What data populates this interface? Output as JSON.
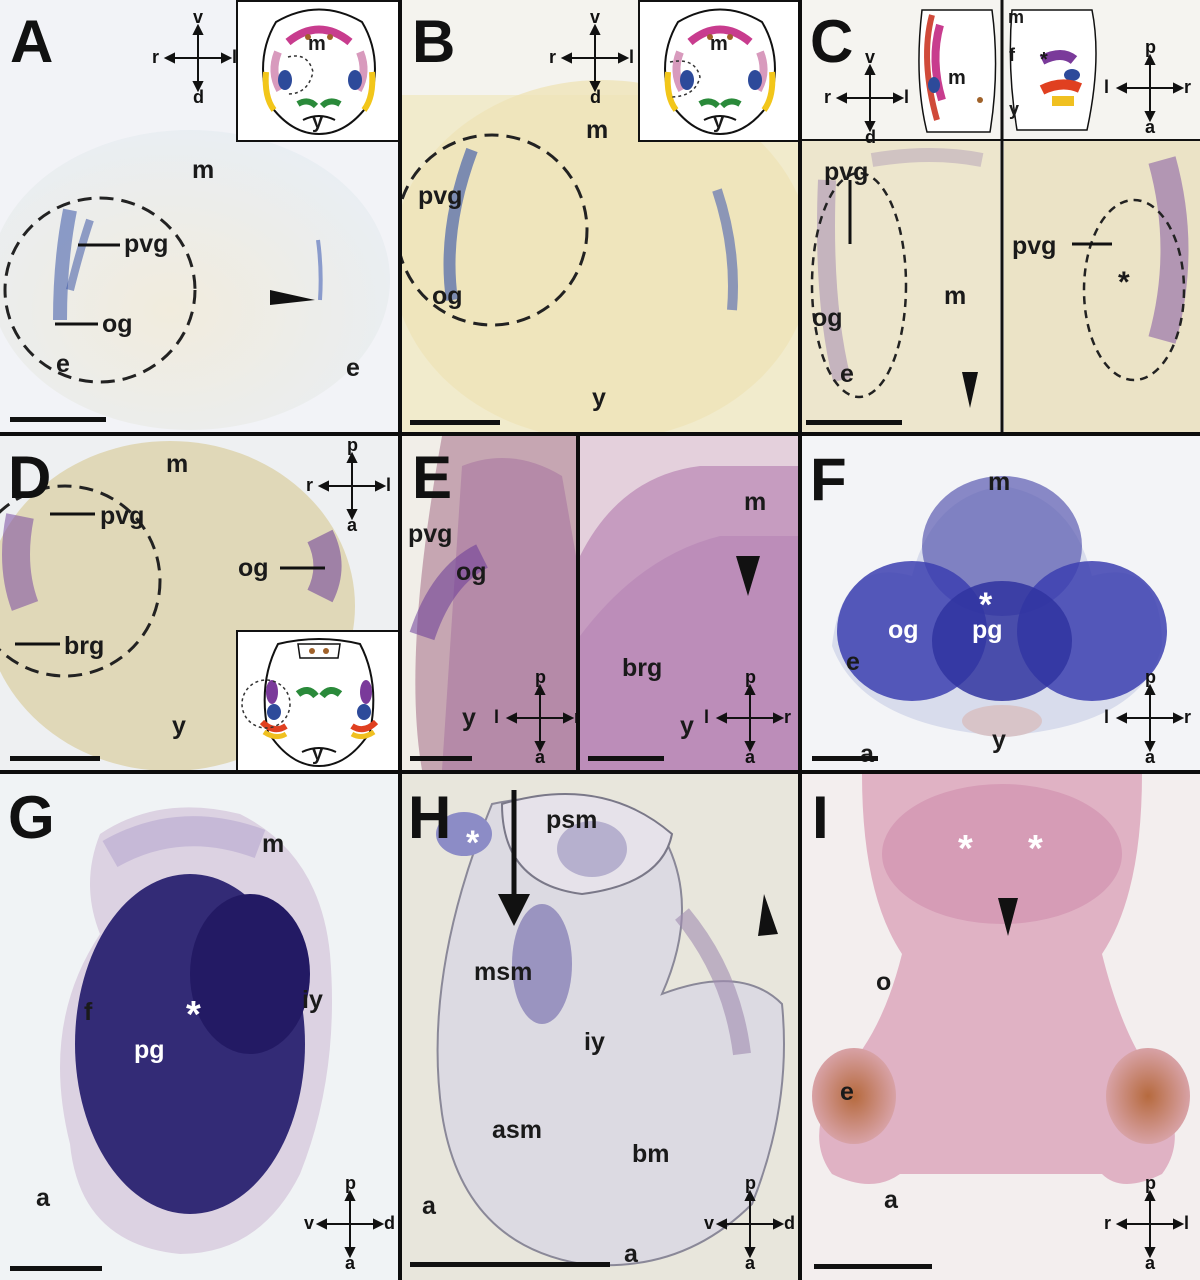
{
  "figure": {
    "panels": [
      {
        "letter": "A",
        "labels": [
          "m",
          "pvg",
          "og",
          "e",
          "e"
        ],
        "compass": {
          "top": "v",
          "bottom": "d",
          "left": "r",
          "right": "l"
        },
        "inset_labels": [
          "m",
          "y"
        ]
      },
      {
        "letter": "B",
        "labels": [
          "m",
          "pvg",
          "og",
          "y"
        ],
        "compass": {
          "top": "v",
          "bottom": "d",
          "left": "r",
          "right": "l"
        },
        "inset_labels": [
          "m",
          "y"
        ]
      },
      {
        "letter": "C",
        "labels": [
          "pvg",
          "og",
          "e",
          "m",
          "pvg"
        ],
        "compass": {
          "top": "v",
          "bottom": "d",
          "left": "r",
          "right": "l"
        },
        "compass2": {
          "top": "p",
          "bottom": "a",
          "left": "l",
          "right": "r"
        },
        "inset_labels": [
          "m",
          "m",
          "f",
          "y"
        ]
      },
      {
        "letter": "D",
        "labels": [
          "m",
          "pvg",
          "og",
          "brg",
          "y"
        ],
        "compass": {
          "top": "p",
          "bottom": "a",
          "left": "r",
          "right": "l"
        },
        "inset_labels": [
          "y"
        ]
      },
      {
        "letter": "E",
        "labels": [
          "pvg",
          "og",
          "y",
          "m",
          "brg",
          "y"
        ],
        "compass": {
          "top": "p",
          "bottom": "a",
          "left": "l",
          "right": "r"
        },
        "compass2": {
          "top": "p",
          "bottom": "a",
          "left": "l",
          "right": "r"
        }
      },
      {
        "letter": "F",
        "labels": [
          "m",
          "og",
          "pg",
          "e",
          "y",
          "a"
        ],
        "compass": {
          "top": "p",
          "bottom": "a",
          "left": "l",
          "right": "r"
        }
      },
      {
        "letter": "G",
        "labels": [
          "m",
          "iy",
          "f",
          "pg",
          "a"
        ],
        "compass": {
          "top": "p",
          "bottom": "a",
          "left": "v",
          "right": "d"
        }
      },
      {
        "letter": "H",
        "labels": [
          "psm",
          "msm",
          "iy",
          "asm",
          "bm",
          "a",
          "a"
        ],
        "compass": {
          "top": "p",
          "bottom": "a",
          "left": "v",
          "right": "d"
        }
      },
      {
        "letter": "I",
        "labels": [
          "o",
          "e",
          "a"
        ],
        "compass": {
          "top": "p",
          "bottom": "a",
          "left": "r",
          "right": "l"
        }
      }
    ],
    "star": "*"
  }
}
